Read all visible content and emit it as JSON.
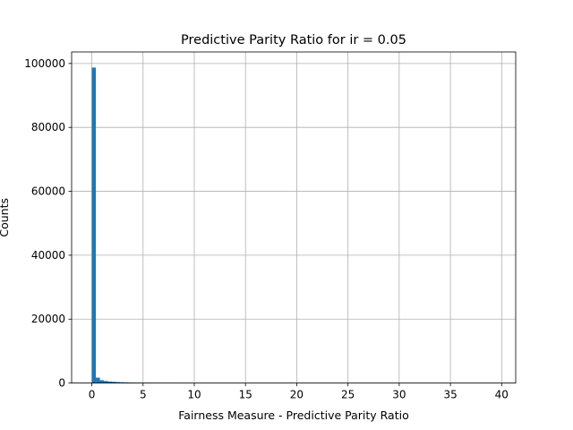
{
  "chart_data": {
    "type": "bar",
    "title": "Predictive Parity Ratio for ir = 0.05",
    "xlabel": "Fairness Measure - Predictive Parity Ratio",
    "ylabel": "Counts",
    "xlim": [
      -1.97,
      41.37
    ],
    "ylim": [
      0,
      103600
    ],
    "xticks": [
      0,
      5,
      10,
      15,
      20,
      25,
      30,
      35,
      40
    ],
    "yticks": [
      0,
      20000,
      40000,
      60000,
      80000,
      100000
    ],
    "grid": true,
    "bar_color": "#1f77b4",
    "bin_start": 0.0,
    "bin_width": 0.394,
    "bins": 100,
    "values": [
      98700,
      1700,
      900,
      650,
      500,
      400,
      320,
      260,
      210,
      170,
      140,
      115,
      95,
      80,
      70,
      60,
      50,
      42,
      36,
      30,
      26,
      22,
      19,
      16,
      14,
      12,
      10,
      9,
      8,
      7,
      6,
      5,
      5,
      4,
      4,
      3,
      3,
      3,
      2,
      2,
      2,
      2,
      2,
      1,
      1,
      1,
      1,
      1,
      1,
      1,
      1,
      1,
      1,
      1,
      1,
      1,
      1,
      1,
      1,
      1,
      1,
      1,
      1,
      1,
      1,
      1,
      1,
      1,
      1,
      1,
      1,
      1,
      1,
      1,
      1,
      1,
      1,
      1,
      1,
      1,
      1,
      1,
      1,
      1,
      1,
      1,
      1,
      1,
      1,
      1,
      1,
      1,
      1,
      1,
      1,
      1,
      1,
      1,
      1,
      1
    ]
  }
}
